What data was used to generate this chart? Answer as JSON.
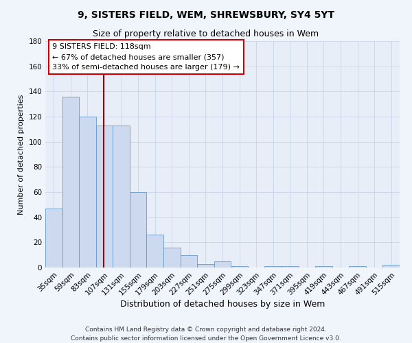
{
  "title": "9, SISTERS FIELD, WEM, SHREWSBURY, SY4 5YT",
  "subtitle": "Size of property relative to detached houses in Wem",
  "xlabel": "Distribution of detached houses by size in Wem",
  "ylabel": "Number of detached properties",
  "categories": [
    "35sqm",
    "59sqm",
    "83sqm",
    "107sqm",
    "131sqm",
    "155sqm",
    "179sqm",
    "203sqm",
    "227sqm",
    "251sqm",
    "275sqm",
    "299sqm",
    "323sqm",
    "347sqm",
    "371sqm",
    "395sqm",
    "419sqm",
    "443sqm",
    "467sqm",
    "491sqm",
    "515sqm"
  ],
  "values": [
    47,
    136,
    120,
    113,
    113,
    60,
    26,
    16,
    10,
    3,
    5,
    1,
    0,
    1,
    1,
    0,
    1,
    0,
    1,
    0,
    2
  ],
  "bar_color": "#ccd9ee",
  "bar_edge_color": "#6699cc",
  "ylim": [
    0,
    180
  ],
  "yticks": [
    0,
    20,
    40,
    60,
    80,
    100,
    120,
    140,
    160,
    180
  ],
  "marker_label": "9 SISTERS FIELD: 118sqm",
  "annotation_line1": "← 67% of detached houses are smaller (357)",
  "annotation_line2": "33% of semi-detached houses are larger (179) →",
  "footer_line1": "Contains HM Land Registry data © Crown copyright and database right 2024.",
  "footer_line2": "Contains public sector information licensed under the Open Government Licence v3.0.",
  "title_fontsize": 10,
  "subtitle_fontsize": 9,
  "xlabel_fontsize": 9,
  "ylabel_fontsize": 8,
  "tick_fontsize": 7.5,
  "footer_fontsize": 6.5,
  "annotation_fontsize": 8,
  "background_color": "#f0f4fb",
  "plot_bg_color": "#e8eef8",
  "grid_color": "#c8d4e8",
  "annotation_box_color": "#ffffff",
  "annotation_box_edge": "#cc0000",
  "marker_line_color": "#990000"
}
